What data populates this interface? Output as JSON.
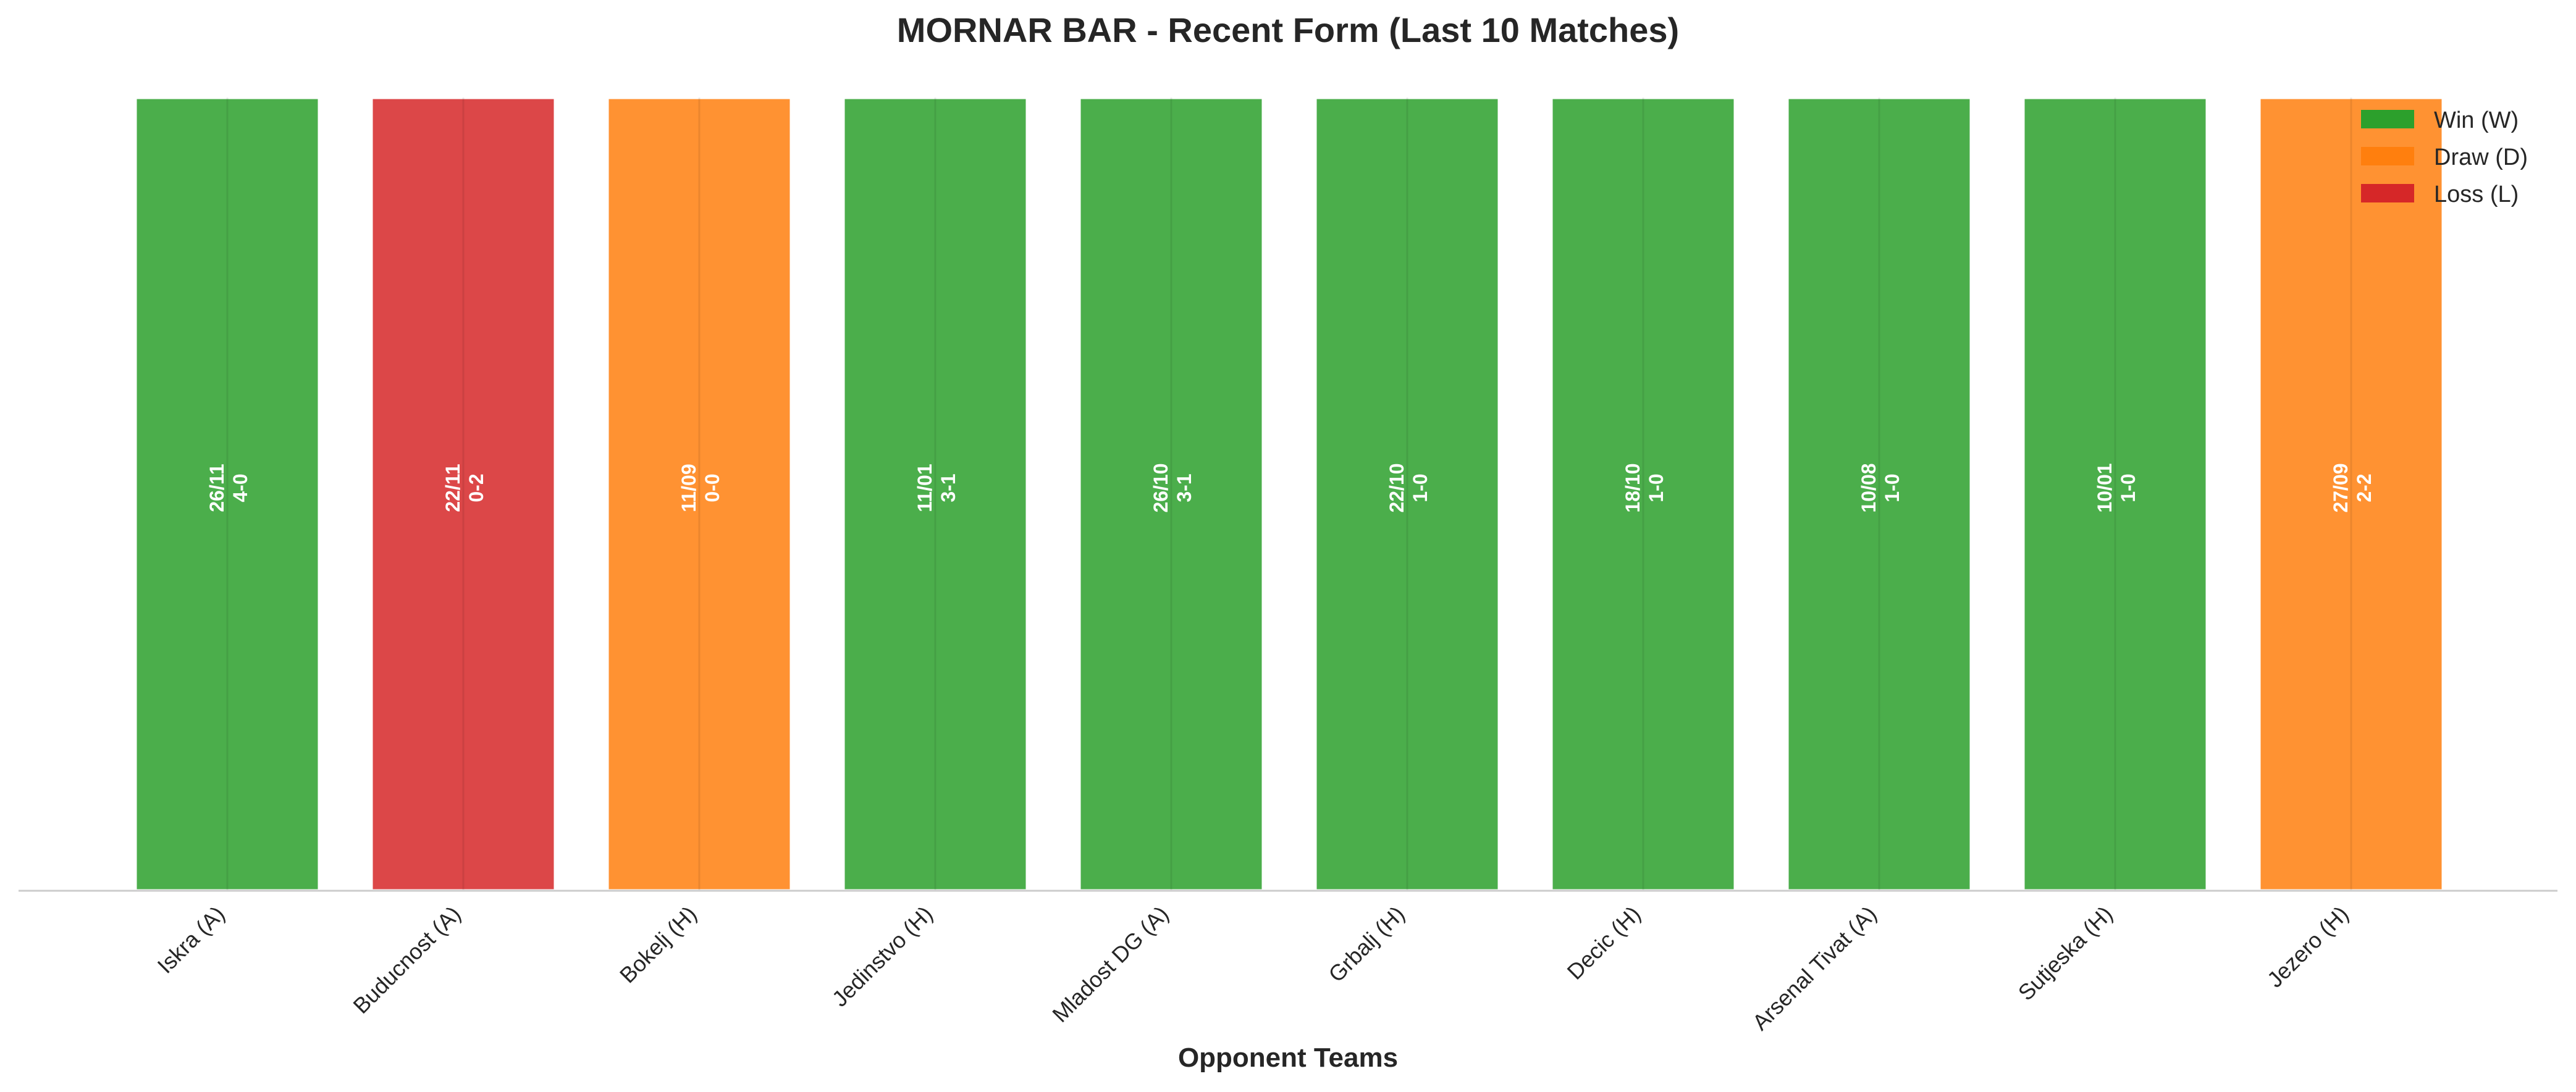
{
  "chart_data": {
    "type": "bar",
    "title": "MORNAR BAR - Recent Form (Last 10 Matches)",
    "xlabel": "Opponent Teams",
    "ylabel": "",
    "grid": false,
    "legend_placement": "top-right",
    "legend": [
      {
        "result": "W",
        "label": "Win (W)",
        "color": "#2ca02c"
      },
      {
        "result": "D",
        "label": "Draw (D)",
        "color": "#ff7f0e"
      },
      {
        "result": "L",
        "label": "Loss (L)",
        "color": "#d62728"
      }
    ],
    "categories": [
      "Iskra (A)",
      "Buducnost (A)",
      "Bokelj (H)",
      "Jedinstvo (H)",
      "Mladost DG (A)",
      "Grbalj (H)",
      "Decic (H)",
      "Arsenal Tivat (A)",
      "Sutjeska (H)",
      "Jezero (H)"
    ],
    "values": [
      1,
      1,
      1,
      1,
      1,
      1,
      1,
      1,
      1,
      1
    ],
    "results": [
      "W",
      "L",
      "D",
      "W",
      "W",
      "W",
      "W",
      "W",
      "W",
      "D"
    ],
    "dates": [
      "26/11",
      "22/11",
      "11/09",
      "11/01",
      "26/10",
      "22/10",
      "18/10",
      "10/08",
      "10/01",
      "27/09"
    ],
    "scores": [
      "4-0",
      "0-2",
      "0-0",
      "3-1",
      "3-1",
      "1-0",
      "1-0",
      "1-0",
      "1-0",
      "2-2"
    ],
    "ylim": [
      0,
      1
    ]
  }
}
